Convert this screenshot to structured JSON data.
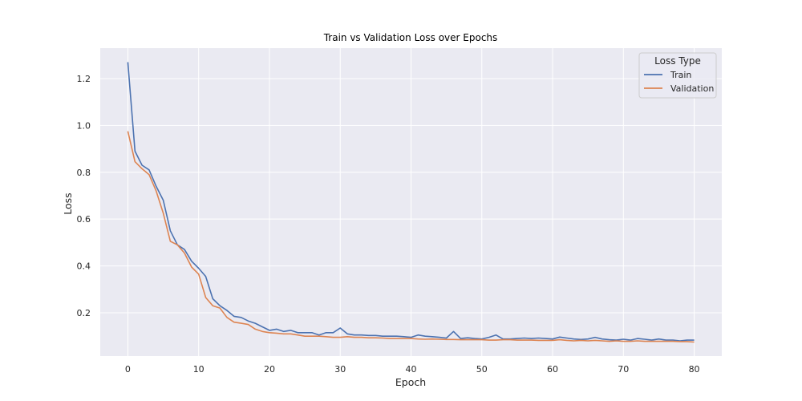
{
  "chart_data": {
    "type": "line",
    "title": "Train vs Validation Loss over Epochs",
    "xlabel": "Epoch",
    "ylabel": "Loss",
    "xlim": [
      -3.9,
      83.9
    ],
    "ylim": [
      0.015,
      1.33
    ],
    "xticks": [
      0,
      10,
      20,
      30,
      40,
      50,
      60,
      70,
      80
    ],
    "yticks": [
      0.2,
      0.4,
      0.6,
      0.8,
      1.0,
      1.2
    ],
    "ytick_labels": [
      "0.2",
      "0.4",
      "0.6",
      "0.8",
      "1.0",
      "1.2"
    ],
    "grid": true,
    "legend": {
      "title": "Loss Type",
      "position": "upper right"
    },
    "x": [
      0,
      1,
      2,
      3,
      4,
      5,
      6,
      7,
      8,
      9,
      10,
      11,
      12,
      13,
      14,
      15,
      16,
      17,
      18,
      19,
      20,
      21,
      22,
      23,
      24,
      25,
      26,
      27,
      28,
      29,
      30,
      31,
      32,
      33,
      34,
      35,
      36,
      37,
      38,
      39,
      40,
      41,
      42,
      43,
      44,
      45,
      46,
      47,
      48,
      49,
      50,
      51,
      52,
      53,
      54,
      55,
      56,
      57,
      58,
      59,
      60,
      61,
      62,
      63,
      64,
      65,
      66,
      67,
      68,
      69,
      70,
      71,
      72,
      73,
      74,
      75,
      76,
      77,
      78,
      79,
      80
    ],
    "series": [
      {
        "name": "Train",
        "color": "#4c72b0",
        "values": [
          1.27,
          0.89,
          0.83,
          0.81,
          0.74,
          0.68,
          0.55,
          0.49,
          0.47,
          0.42,
          0.39,
          0.355,
          0.26,
          0.23,
          0.21,
          0.185,
          0.18,
          0.165,
          0.155,
          0.14,
          0.125,
          0.13,
          0.12,
          0.125,
          0.115,
          0.115,
          0.115,
          0.105,
          0.115,
          0.115,
          0.135,
          0.11,
          0.105,
          0.105,
          0.103,
          0.103,
          0.1,
          0.1,
          0.1,
          0.098,
          0.095,
          0.105,
          0.1,
          0.098,
          0.095,
          0.092,
          0.12,
          0.09,
          0.093,
          0.09,
          0.088,
          0.095,
          0.105,
          0.088,
          0.088,
          0.09,
          0.092,
          0.09,
          0.092,
          0.09,
          0.088,
          0.096,
          0.092,
          0.088,
          0.086,
          0.088,
          0.095,
          0.088,
          0.085,
          0.083,
          0.087,
          0.083,
          0.09,
          0.087,
          0.083,
          0.088,
          0.083,
          0.083,
          0.08,
          0.083,
          0.083
        ]
      },
      {
        "name": "Validation",
        "color": "#dd8452",
        "values": [
          0.975,
          0.845,
          0.815,
          0.79,
          0.72,
          0.625,
          0.505,
          0.49,
          0.455,
          0.395,
          0.365,
          0.265,
          0.23,
          0.22,
          0.18,
          0.16,
          0.155,
          0.15,
          0.13,
          0.12,
          0.115,
          0.113,
          0.11,
          0.11,
          0.105,
          0.1,
          0.1,
          0.1,
          0.098,
          0.095,
          0.095,
          0.098,
          0.095,
          0.095,
          0.093,
          0.093,
          0.092,
          0.09,
          0.09,
          0.09,
          0.09,
          0.088,
          0.087,
          0.088,
          0.087,
          0.086,
          0.086,
          0.085,
          0.085,
          0.085,
          0.085,
          0.083,
          0.083,
          0.085,
          0.085,
          0.083,
          0.083,
          0.083,
          0.082,
          0.082,
          0.082,
          0.085,
          0.082,
          0.08,
          0.082,
          0.08,
          0.082,
          0.08,
          0.078,
          0.08,
          0.078,
          0.078,
          0.08,
          0.078,
          0.078,
          0.078,
          0.078,
          0.078,
          0.077,
          0.077,
          0.075
        ]
      }
    ]
  }
}
